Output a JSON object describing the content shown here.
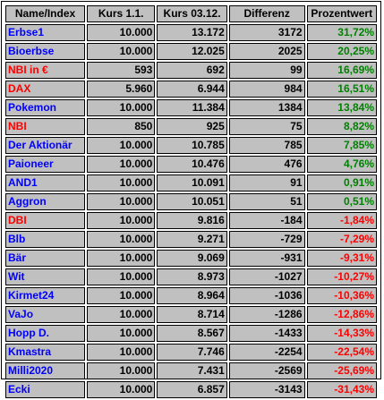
{
  "table": {
    "headers": [
      "Name/Index",
      "Kurs 1.1.",
      "Kurs 03.12.",
      "Differenz",
      "Prozentwert"
    ],
    "colors": {
      "blue_name": "#0000ff",
      "red_name": "#ff0000",
      "positive": "#008000",
      "negative": "#ff0000",
      "cell_bg": "#c0c0c0"
    },
    "rows": [
      {
        "name": "Erbse1",
        "name_color": "blue",
        "kurs_1_1": "10.000",
        "kurs_03_12": "13.172",
        "differenz": "3172",
        "prozentwert": "31,72%",
        "sign": "pos"
      },
      {
        "name": "Bioerbse",
        "name_color": "blue",
        "kurs_1_1": "10.000",
        "kurs_03_12": "12.025",
        "differenz": "2025",
        "prozentwert": "20,25%",
        "sign": "pos"
      },
      {
        "name": "NBI in €",
        "name_color": "red",
        "kurs_1_1": "593",
        "kurs_03_12": "692",
        "differenz": "99",
        "prozentwert": "16,69%",
        "sign": "pos"
      },
      {
        "name": "DAX",
        "name_color": "red",
        "kurs_1_1": "5.960",
        "kurs_03_12": "6.944",
        "differenz": "984",
        "prozentwert": "16,51%",
        "sign": "pos"
      },
      {
        "name": "Pokemon",
        "name_color": "blue",
        "kurs_1_1": "10.000",
        "kurs_03_12": "11.384",
        "differenz": "1384",
        "prozentwert": "13,84%",
        "sign": "pos"
      },
      {
        "name": "NBI",
        "name_color": "red",
        "kurs_1_1": "850",
        "kurs_03_12": "925",
        "differenz": "75",
        "prozentwert": "8,82%",
        "sign": "pos"
      },
      {
        "name": "Der Aktionär",
        "name_color": "blue",
        "kurs_1_1": "10.000",
        "kurs_03_12": "10.785",
        "differenz": "785",
        "prozentwert": "7,85%",
        "sign": "pos"
      },
      {
        "name": "Paioneer",
        "name_color": "blue",
        "kurs_1_1": "10.000",
        "kurs_03_12": "10.476",
        "differenz": "476",
        "prozentwert": "4,76%",
        "sign": "pos"
      },
      {
        "name": "AND1",
        "name_color": "blue",
        "kurs_1_1": "10.000",
        "kurs_03_12": "10.091",
        "differenz": "91",
        "prozentwert": "0,91%",
        "sign": "pos"
      },
      {
        "name": "Aggron",
        "name_color": "blue",
        "kurs_1_1": "10.000",
        "kurs_03_12": "10.051",
        "differenz": "51",
        "prozentwert": "0,51%",
        "sign": "pos"
      },
      {
        "name": "DBI",
        "name_color": "red",
        "kurs_1_1": "10.000",
        "kurs_03_12": "9.816",
        "differenz": "-184",
        "prozentwert": "-1,84%",
        "sign": "neg"
      },
      {
        "name": "Blb",
        "name_color": "blue",
        "kurs_1_1": "10.000",
        "kurs_03_12": "9.271",
        "differenz": "-729",
        "prozentwert": "-7,29%",
        "sign": "neg"
      },
      {
        "name": "Bär",
        "name_color": "blue",
        "kurs_1_1": "10.000",
        "kurs_03_12": "9.069",
        "differenz": "-931",
        "prozentwert": "-9,31%",
        "sign": "neg"
      },
      {
        "name": "Wit",
        "name_color": "blue",
        "kurs_1_1": "10.000",
        "kurs_03_12": "8.973",
        "differenz": "-1027",
        "prozentwert": "-10,27%",
        "sign": "neg"
      },
      {
        "name": "Kirmet24",
        "name_color": "blue",
        "kurs_1_1": "10.000",
        "kurs_03_12": "8.964",
        "differenz": "-1036",
        "prozentwert": "-10,36%",
        "sign": "neg"
      },
      {
        "name": "VaJo",
        "name_color": "blue",
        "kurs_1_1": "10.000",
        "kurs_03_12": "8.714",
        "differenz": "-1286",
        "prozentwert": "-12,86%",
        "sign": "neg"
      },
      {
        "name": "Hopp D.",
        "name_color": "blue",
        "kurs_1_1": "10.000",
        "kurs_03_12": "8.567",
        "differenz": "-1433",
        "prozentwert": "-14,33%",
        "sign": "neg"
      },
      {
        "name": "Kmastra",
        "name_color": "blue",
        "kurs_1_1": "10.000",
        "kurs_03_12": "7.746",
        "differenz": "-2254",
        "prozentwert": "-22,54%",
        "sign": "neg"
      },
      {
        "name": "Milli2020",
        "name_color": "blue",
        "kurs_1_1": "10.000",
        "kurs_03_12": "7.431",
        "differenz": "-2569",
        "prozentwert": "-25,69%",
        "sign": "neg"
      },
      {
        "name": "Ecki",
        "name_color": "blue",
        "kurs_1_1": "10.000",
        "kurs_03_12": "6.857",
        "differenz": "-3143",
        "prozentwert": "-31,43%",
        "sign": "neg"
      }
    ]
  }
}
